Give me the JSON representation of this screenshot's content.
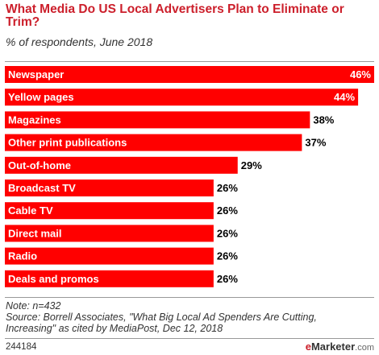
{
  "chart_data": {
    "type": "bar",
    "orientation": "horizontal",
    "title": "What Media Do US Local Advertisers Plan to Eliminate or Trim?",
    "subtitle": "% of respondents, June 2018",
    "categories": [
      "Newspaper",
      "Yellow pages",
      "Magazines",
      "Other print publications",
      "Out-of-home",
      "Broadcast TV",
      "Cable TV",
      "Direct mail",
      "Radio",
      "Deals and promos"
    ],
    "values": [
      46,
      44,
      38,
      37,
      29,
      26,
      26,
      26,
      26,
      26
    ],
    "value_labels": [
      "46%",
      "44%",
      "38%",
      "37%",
      "29%",
      "26%",
      "26%",
      "26%",
      "26%",
      "26%"
    ],
    "unit": "%",
    "grid": false,
    "legend": "none",
    "bar_color": "#ff0000"
  },
  "footer": {
    "note": "Note: n=432",
    "source_line1": "Source: Borrell Associates, \"What Big Local Ad Spenders Are Cutting,",
    "source_line2": "Increasing\" as cited by MediaPost, Dec 12, 2018",
    "chart_id": "244184",
    "brand_e": "e",
    "brand_name": "Marketer",
    "brand_site": ".com"
  }
}
